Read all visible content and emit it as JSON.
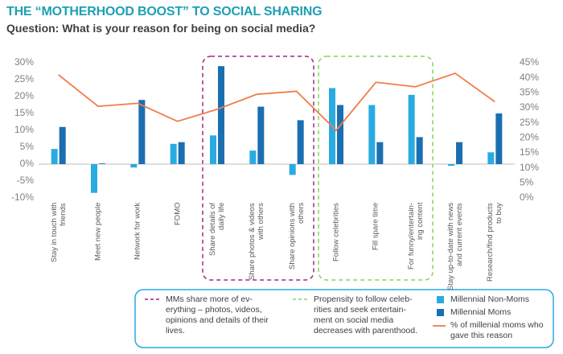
{
  "chart_data": {
    "type": "bar_line",
    "title": "THE “MOTHERHOOD BOOST” TO SOCIAL SHARING",
    "subtitle": "Question: What is your reason for being on social media?",
    "annotations": [
      "MMs share more of ev-\nerything – photos, videos,\nopinions and details of their\nlives.",
      "Propensity to follow celeb-\nrities and seek entertain-\nment on social media\ndecreases with parenthood."
    ],
    "categories": [
      "Stay in touch with\nfriends",
      "Meet new people",
      "Network for work",
      "FOMO",
      "Share details of\ndaily life",
      "Share photos & videos\nwith others",
      "Share opinions with\nothers",
      "Follow celebrities",
      "Fill spare time",
      "For funny/entertain-\ning content",
      "Stay up-to-date with news\nand current events",
      "Research/find products\nto buy"
    ],
    "series": [
      {
        "name": "Millennial Non-Moms",
        "type": "bar",
        "color": "#29abe2",
        "values": [
          4.5,
          -8.5,
          -1,
          6,
          8.5,
          4,
          -3.2,
          22.5,
          17.5,
          20.5,
          -0.5,
          3.5
        ]
      },
      {
        "name": "Millennial Moms",
        "type": "bar",
        "color": "#1a6fb0",
        "values": [
          11,
          0.2,
          19,
          6.5,
          29,
          17,
          13,
          17.5,
          6.5,
          8,
          6.5,
          15
        ]
      },
      {
        "name": "% of millenial moms who gave this reason",
        "type": "line",
        "axis": "y2",
        "color": "#f07c4a",
        "values": [
          41,
          30.5,
          31.5,
          25.5,
          29.5,
          34.5,
          35.5,
          22.5,
          38.5,
          37,
          41.5,
          32
        ]
      }
    ],
    "ylim": [
      -10,
      30
    ],
    "yticks": [
      {
        "value": -10,
        "label": "-10%"
      },
      {
        "value": -5,
        "label": "-5%"
      },
      {
        "value": 0,
        "label": "0%"
      },
      {
        "value": 5,
        "label": "5%"
      },
      {
        "value": 10,
        "label": "10%"
      },
      {
        "value": 15,
        "label": "15%"
      },
      {
        "value": 20,
        "label": "20%"
      },
      {
        "value": 25,
        "label": "25%"
      },
      {
        "value": 30,
        "label": "30%"
      }
    ],
    "y2lim": [
      0,
      45
    ],
    "y2ticks": [
      {
        "value": 0,
        "label": "0%"
      },
      {
        "value": 5,
        "label": "5%"
      },
      {
        "value": 10,
        "label": "10%"
      },
      {
        "value": 15,
        "label": "15%"
      },
      {
        "value": 20,
        "label": "20%"
      },
      {
        "value": 25,
        "label": "25%"
      },
      {
        "value": 30,
        "label": "30%"
      },
      {
        "value": 35,
        "label": "35%"
      },
      {
        "value": 40,
        "label": "40%"
      },
      {
        "value": 45,
        "label": "45%"
      }
    ],
    "grid": false
  }
}
